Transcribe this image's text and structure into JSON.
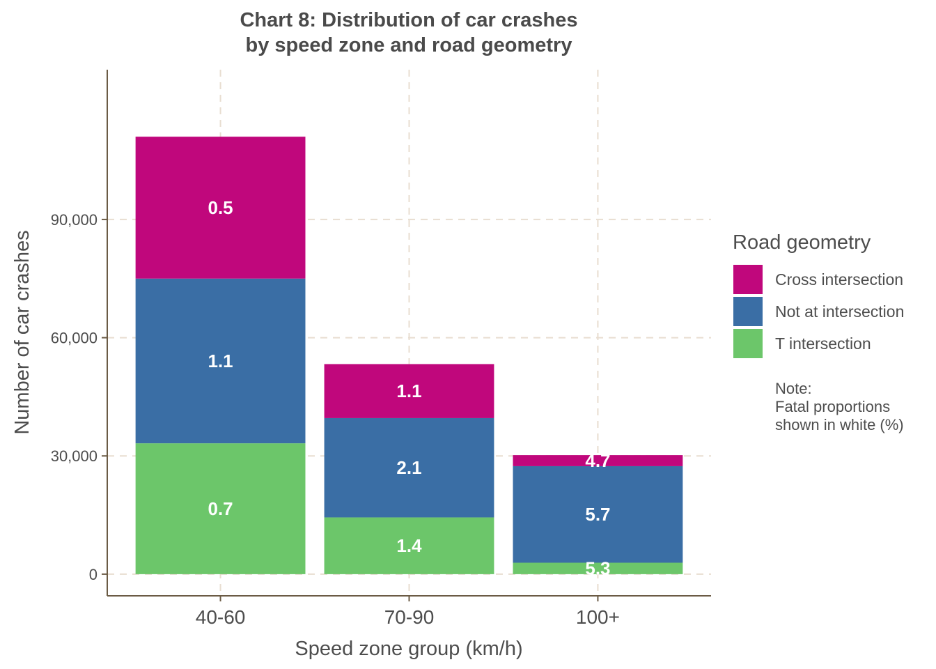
{
  "chart_data": {
    "type": "bar",
    "stacked": true,
    "title_lines": [
      "Chart 8: Distribution of car crashes",
      "by speed zone and road geometry"
    ],
    "xlabel": "Speed zone group (km/h)",
    "ylabel": "Number of car crashes",
    "categories": [
      "40-60",
      "70-90",
      "100+"
    ],
    "ylim": [
      -5500,
      128000
    ],
    "yticks": [
      0,
      30000,
      60000,
      90000
    ],
    "ytick_labels": [
      "0",
      "30,000",
      "60,000",
      "90,000"
    ],
    "grid": true,
    "series": [
      {
        "name": "T intersection",
        "color": "#6cc66a",
        "values": [
          33200,
          14400,
          2900
        ],
        "labels": [
          "0.7",
          "1.4",
          "5.3"
        ]
      },
      {
        "name": "Not at intersection",
        "color": "#3a6ea5",
        "values": [
          41800,
          25200,
          24500
        ],
        "labels": [
          "1.1",
          "2.1",
          "5.7"
        ]
      },
      {
        "name": "Cross intersection",
        "color": "#c0077c",
        "values": [
          36000,
          13700,
          2800
        ],
        "labels": [
          "0.5",
          "1.1",
          "4.7"
        ]
      }
    ],
    "legend": {
      "title": "Road geometry",
      "position": "right",
      "items": [
        "Cross intersection",
        "Not at intersection",
        "T intersection"
      ],
      "note_lines": [
        "Note:",
        "Fatal proportions",
        "shown in white (%)"
      ]
    },
    "colors": {
      "axis": "#6b5b45",
      "grid": "#e8ddd0"
    }
  }
}
